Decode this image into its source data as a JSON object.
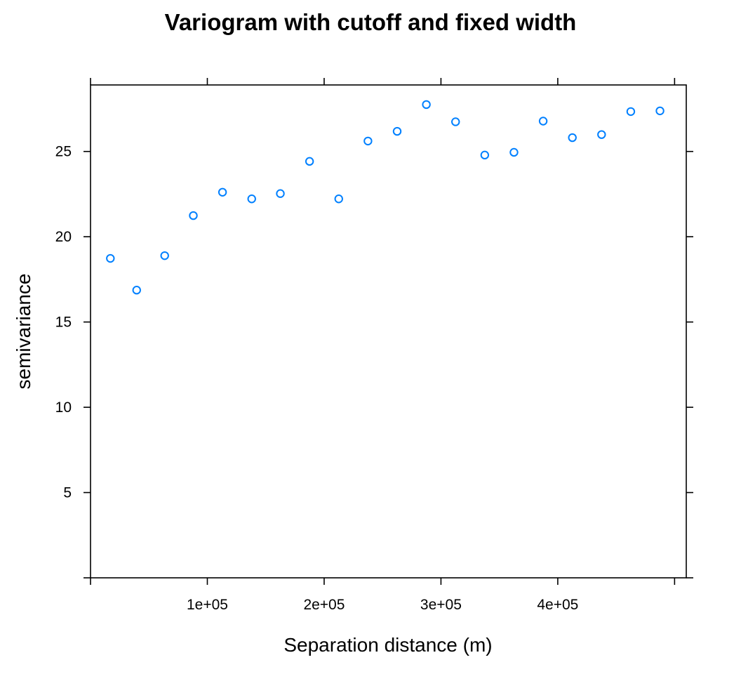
{
  "chart_data": {
    "type": "scatter",
    "title": "Variogram with cutoff and fixed width",
    "xlabel": "Separation distance (m)",
    "ylabel": "semivariance",
    "xlim": [
      0,
      510000
    ],
    "ylim": [
      0,
      28.9
    ],
    "x_ticks": [
      {
        "value": 0,
        "label": ""
      },
      {
        "value": 100000,
        "label": "1e+05"
      },
      {
        "value": 200000,
        "label": "2e+05"
      },
      {
        "value": 300000,
        "label": "3e+05"
      },
      {
        "value": 400000,
        "label": "4e+05"
      },
      {
        "value": 500000,
        "label": ""
      }
    ],
    "y_ticks": [
      {
        "value": 0,
        "label": ""
      },
      {
        "value": 5,
        "label": "5"
      },
      {
        "value": 10,
        "label": "10"
      },
      {
        "value": 15,
        "label": "15"
      },
      {
        "value": 20,
        "label": "20"
      },
      {
        "value": 25,
        "label": "25"
      }
    ],
    "grid": false,
    "point_color": "#0080ff",
    "series": [
      {
        "x": [
          17000,
          39500,
          63500,
          88000,
          113000,
          138000,
          162500,
          187500,
          212500,
          237500,
          262500,
          287500,
          312500,
          337500,
          362500,
          387500,
          412500,
          437500,
          462500,
          487500
        ],
        "y": [
          18.73,
          16.87,
          18.89,
          21.24,
          22.61,
          22.22,
          22.53,
          24.42,
          22.22,
          25.61,
          26.18,
          27.75,
          26.74,
          24.79,
          24.95,
          26.78,
          25.81,
          25.99,
          27.34,
          27.38
        ]
      }
    ]
  }
}
